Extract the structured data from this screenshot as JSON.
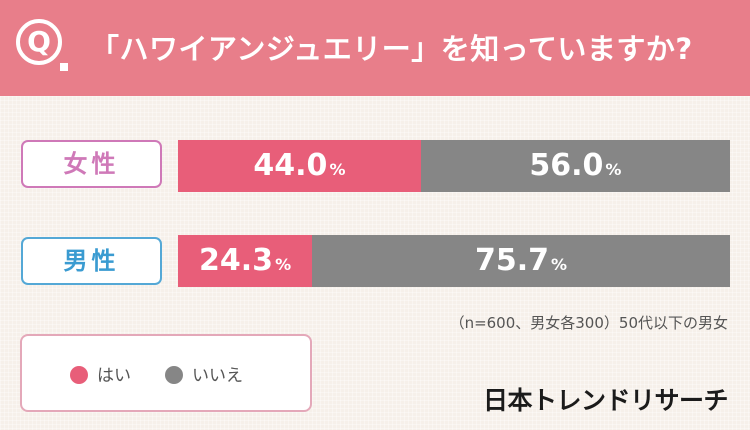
{
  "header": {
    "q_mark": "Q",
    "question": "「ハワイアンジュエリー」を知っていますか?"
  },
  "colors": {
    "header_bg": "#e87e8a",
    "yes": "#e85e79",
    "no": "#868686",
    "female": "#cf79b8",
    "male": "#3a9bd1"
  },
  "chart_data": {
    "type": "bar",
    "title": "「ハワイアンジュエリー」を知っていますか?",
    "stacked": true,
    "orientation": "horizontal",
    "unit": "%",
    "categories": [
      "女性",
      "男性"
    ],
    "series": [
      {
        "name": "はい",
        "values": [
          44.0,
          24.3
        ]
      },
      {
        "name": "いいえ",
        "values": [
          56.0,
          75.7
        ]
      }
    ],
    "xlim": [
      0,
      100
    ],
    "grid": false
  },
  "rows": [
    {
      "label": "女性",
      "yes_value": "44.0",
      "no_value": "56.0"
    },
    {
      "label": "男性",
      "yes_value": "24.3",
      "no_value": "75.7"
    }
  ],
  "unit": "%",
  "note": "（n=600、男女各300）50代以下の男女",
  "legend": {
    "yes_label": "はい",
    "no_label": "いいえ"
  },
  "brand": "日本トレンドリサーチ"
}
